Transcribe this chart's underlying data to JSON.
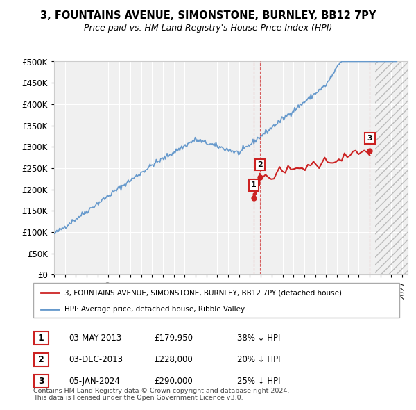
{
  "title": "3, FOUNTAINS AVENUE, SIMONSTONE, BURNLEY, BB12 7PY",
  "subtitle": "Price paid vs. HM Land Registry's House Price Index (HPI)",
  "ylabel_ticks": [
    "£0",
    "£50K",
    "£100K",
    "£150K",
    "£200K",
    "£250K",
    "£300K",
    "£350K",
    "£400K",
    "£450K",
    "£500K"
  ],
  "ytick_values": [
    0,
    50000,
    100000,
    150000,
    200000,
    250000,
    300000,
    350000,
    400000,
    450000,
    500000
  ],
  "ylim": [
    0,
    500000
  ],
  "xlim_start": 1995.0,
  "xlim_end": 2027.5,
  "hpi_color": "#6699cc",
  "sold_color": "#cc2222",
  "background_color": "#f0f0f0",
  "sold_dates": [
    2013.34,
    2013.92,
    2024.02
  ],
  "sold_prices": [
    179950,
    228000,
    290000
  ],
  "sale_labels": [
    "1",
    "2",
    "3"
  ],
  "vline_dates": [
    2013.34,
    2013.92,
    2024.02
  ],
  "legend_sold_label": "3, FOUNTAINS AVENUE, SIMONSTONE, BURNLEY, BB12 7PY (detached house)",
  "legend_hpi_label": "HPI: Average price, detached house, Ribble Valley",
  "table_rows": [
    {
      "num": "1",
      "date": "03-MAY-2013",
      "price": "£179,950",
      "hpi": "38% ↓ HPI"
    },
    {
      "num": "2",
      "date": "03-DEC-2013",
      "price": "£228,000",
      "hpi": "20% ↓ HPI"
    },
    {
      "num": "3",
      "date": "05-JAN-2024",
      "price": "£290,000",
      "hpi": "25% ↓ HPI"
    }
  ],
  "footer": "Contains HM Land Registry data © Crown copyright and database right 2024.\nThis data is licensed under the Open Government Licence v3.0."
}
